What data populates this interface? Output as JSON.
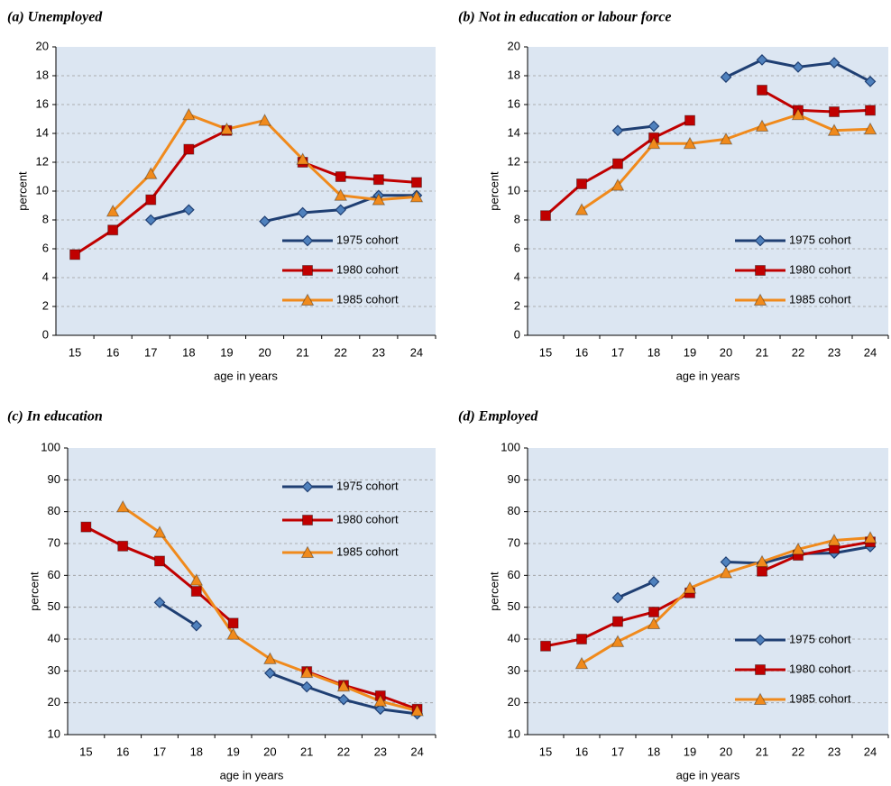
{
  "chart_data": [
    {
      "type": "line",
      "title": "(a) Unemployed",
      "y_label": "percent",
      "x_label": "age in years",
      "categories": [
        "15",
        "16",
        "17",
        "18",
        "19",
        "20",
        "21",
        "22",
        "23",
        "24"
      ],
      "ylim": [
        0,
        20
      ],
      "yticks": [
        0,
        2,
        4,
        6,
        8,
        10,
        12,
        14,
        16,
        18,
        20
      ],
      "grid": true,
      "legend": "lower right",
      "series": [
        {
          "name": "1975 cohort",
          "color": "#1f3f73",
          "marker": "diamond",
          "values": [
            null,
            null,
            8.0,
            8.7,
            null,
            7.9,
            8.5,
            8.7,
            9.7,
            9.7
          ]
        },
        {
          "name": "1980 cohort",
          "color": "#c00000",
          "marker": "square",
          "values": [
            5.6,
            7.3,
            9.4,
            12.9,
            14.2,
            null,
            12.0,
            11.0,
            10.8,
            10.6
          ]
        },
        {
          "name": "1985 cohort",
          "color": "#f08a1c",
          "marker": "triangle",
          "values": [
            null,
            8.6,
            11.2,
            15.3,
            14.3,
            14.9,
            12.2,
            9.7,
            9.4,
            9.6
          ]
        }
      ]
    },
    {
      "type": "line",
      "title": "(b) Not in education or labour force",
      "y_label": "percent",
      "x_label": "age in years",
      "categories": [
        "15",
        "16",
        "17",
        "18",
        "19",
        "20",
        "21",
        "22",
        "23",
        "24"
      ],
      "ylim": [
        0,
        20
      ],
      "yticks": [
        0,
        2,
        4,
        6,
        8,
        10,
        12,
        14,
        16,
        18,
        20
      ],
      "grid": true,
      "legend": "lower right",
      "series": [
        {
          "name": "1975 cohort",
          "color": "#1f3f73",
          "marker": "diamond",
          "values": [
            null,
            null,
            14.2,
            14.5,
            null,
            17.9,
            19.1,
            18.6,
            18.9,
            17.6
          ]
        },
        {
          "name": "1980 cohort",
          "color": "#c00000",
          "marker": "square",
          "values": [
            8.3,
            10.5,
            11.9,
            13.7,
            14.9,
            null,
            17.0,
            15.6,
            15.5,
            15.6
          ]
        },
        {
          "name": "1985 cohort",
          "color": "#f08a1c",
          "marker": "triangle",
          "values": [
            null,
            8.7,
            10.4,
            13.3,
            13.3,
            13.6,
            14.5,
            15.3,
            14.2,
            14.3
          ]
        }
      ]
    },
    {
      "type": "line",
      "title": "(c) In education",
      "y_label": "percent",
      "x_label": "age in years",
      "categories": [
        "15",
        "16",
        "17",
        "18",
        "19",
        "20",
        "21",
        "22",
        "23",
        "24"
      ],
      "ylim": [
        10,
        100
      ],
      "yticks": [
        10,
        20,
        30,
        40,
        50,
        60,
        70,
        80,
        90,
        100
      ],
      "grid": true,
      "legend": "upper right",
      "series": [
        {
          "name": "1975 cohort",
          "color": "#1f3f73",
          "marker": "diamond",
          "values": [
            null,
            null,
            51.5,
            44.2,
            null,
            29.3,
            25.0,
            21.0,
            18.0,
            16.5
          ]
        },
        {
          "name": "1980 cohort",
          "color": "#c00000",
          "marker": "square",
          "values": [
            75.2,
            69.2,
            64.5,
            55.0,
            45.0,
            null,
            29.8,
            25.5,
            22.2,
            18.0
          ]
        },
        {
          "name": "1985 cohort",
          "color": "#f08a1c",
          "marker": "triangle",
          "values": [
            null,
            81.5,
            73.5,
            58.5,
            41.5,
            33.8,
            29.5,
            25.2,
            20.5,
            17.5
          ]
        }
      ]
    },
    {
      "type": "line",
      "title": "(d) Employed",
      "y_label": "percent",
      "x_label": "age in years",
      "categories": [
        "15",
        "16",
        "17",
        "18",
        "19",
        "20",
        "21",
        "22",
        "23",
        "24"
      ],
      "ylim": [
        10,
        100
      ],
      "yticks": [
        10,
        20,
        30,
        40,
        50,
        60,
        70,
        80,
        90,
        100
      ],
      "grid": true,
      "legend": "lower right",
      "series": [
        {
          "name": "1975 cohort",
          "color": "#1f3f73",
          "marker": "diamond",
          "values": [
            null,
            null,
            53.0,
            58.0,
            null,
            64.2,
            63.8,
            66.8,
            67.0,
            69.0
          ]
        },
        {
          "name": "1980 cohort",
          "color": "#c00000",
          "marker": "square",
          "values": [
            37.8,
            40.0,
            45.5,
            48.5,
            54.5,
            null,
            61.3,
            66.3,
            68.5,
            70.5
          ]
        },
        {
          "name": "1985 cohort",
          "color": "#f08a1c",
          "marker": "triangle",
          "values": [
            null,
            32.3,
            39.2,
            44.8,
            56.0,
            60.8,
            64.3,
            68.2,
            71.0,
            71.8
          ]
        }
      ]
    }
  ]
}
